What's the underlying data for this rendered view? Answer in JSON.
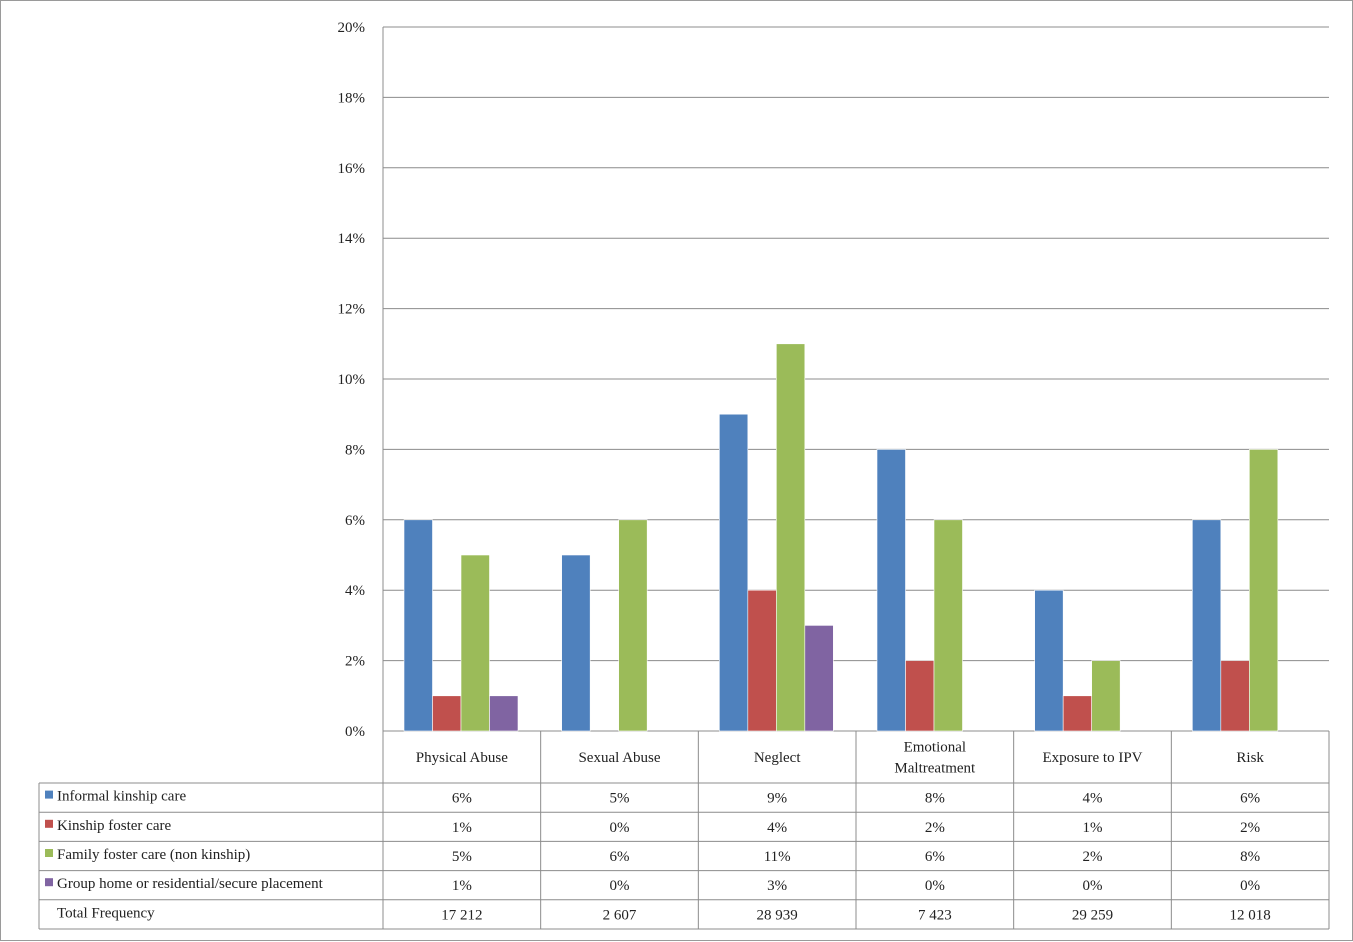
{
  "chart_data": {
    "type": "bar",
    "categories": [
      "Physical Abuse",
      "Sexual Abuse",
      "Neglect",
      "Emotional Maltreatment",
      "Exposure to IPV",
      "Risk"
    ],
    "category_lines": [
      [
        "Physical Abuse"
      ],
      [
        "Sexual Abuse"
      ],
      [
        "Neglect"
      ],
      [
        "Emotional",
        "Maltreatment"
      ],
      [
        "Exposure to IPV"
      ],
      [
        "Risk"
      ]
    ],
    "series": [
      {
        "name": "Informal kinship care",
        "values": [
          6,
          5,
          9,
          8,
          4,
          6
        ],
        "labels": [
          "6%",
          "5%",
          "9%",
          "8%",
          "4%",
          "6%"
        ],
        "color": "#4f81bd"
      },
      {
        "name": "Kinship foster care",
        "values": [
          1,
          0,
          4,
          2,
          1,
          2
        ],
        "labels": [
          "1%",
          "0%",
          "4%",
          "2%",
          "1%",
          "2%"
        ],
        "color": "#c0504d"
      },
      {
        "name": "Family foster care (non kinship)",
        "values": [
          5,
          6,
          11,
          6,
          2,
          8
        ],
        "labels": [
          "5%",
          "6%",
          "11%",
          "6%",
          "2%",
          "8%"
        ],
        "color": "#9bbb59"
      },
      {
        "name": "Group home or residential/secure placement",
        "values": [
          1,
          0,
          3,
          0,
          0,
          0
        ],
        "labels": [
          "1%",
          "0%",
          "3%",
          "0%",
          "0%",
          "0%"
        ],
        "color": "#8064a2"
      }
    ],
    "total_row": {
      "label": "Total Frequency",
      "values": [
        "17 212",
        "2 607",
        "28 939",
        "7 423",
        "29 259",
        "12 018"
      ]
    },
    "title": "",
    "xlabel": "",
    "ylabel": "",
    "ylim": [
      0,
      20
    ],
    "ytick_labels": [
      "0%",
      "2%",
      "4%",
      "6%",
      "8%",
      "10%",
      "12%",
      "14%",
      "16%",
      "18%",
      "20%"
    ],
    "grid": true,
    "legend_placement": "data-table"
  }
}
